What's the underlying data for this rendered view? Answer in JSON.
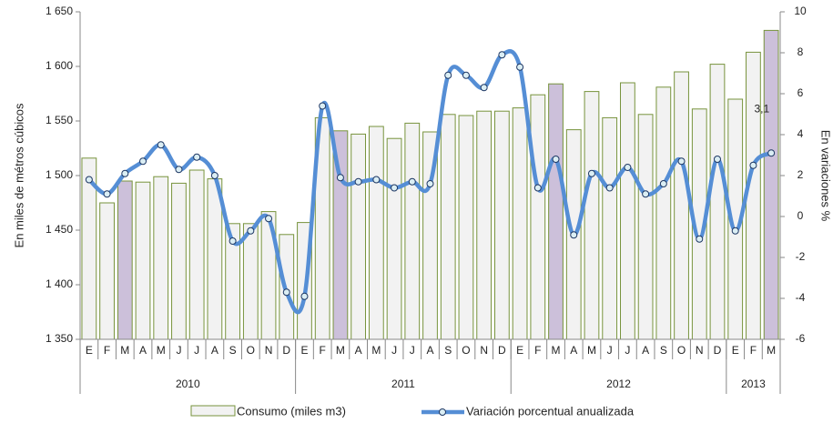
{
  "chart_data": {
    "type": "bar-line",
    "categories": [
      "E",
      "F",
      "M",
      "A",
      "M",
      "J",
      "J",
      "A",
      "S",
      "O",
      "N",
      "D",
      "E",
      "F",
      "M",
      "A",
      "M",
      "J",
      "J",
      "A",
      "S",
      "O",
      "N",
      "D",
      "E",
      "F",
      "M",
      "A",
      "M",
      "J",
      "J",
      "A",
      "S",
      "O",
      "N",
      "D",
      "E",
      "F",
      "M"
    ],
    "groups": [
      "2010",
      "2011",
      "2012",
      "2013"
    ],
    "y_label": "En miles de métros cúbicos",
    "y2_label": "En variaciones %",
    "ylim": [
      1350,
      1650
    ],
    "yticks": [
      {
        "value": 1350,
        "label": "1 350"
      },
      {
        "value": 1400,
        "label": "1 400"
      },
      {
        "value": 1450,
        "label": "1 450"
      },
      {
        "value": 1500,
        "label": "1 500"
      },
      {
        "value": 1550,
        "label": "1 550"
      },
      {
        "value": 1600,
        "label": "1 600"
      },
      {
        "value": 1650,
        "label": "1 650"
      }
    ],
    "y2lim": [
      -6,
      10
    ],
    "y2ticks": [
      -6,
      -4,
      -2,
      0,
      2,
      4,
      6,
      8,
      10
    ],
    "series": [
      {
        "name": "Consumo (miles m3)",
        "type": "bar",
        "color": "#f2f2f2",
        "edge_color": "#77933c",
        "colors": [
          "#f2f2f2",
          "#f2f2f2",
          "#ccc0da",
          "#f2f2f2",
          "#f2f2f2",
          "#f2f2f2",
          "#f2f2f2",
          "#f2f2f2",
          "#f2f2f2",
          "#f2f2f2",
          "#f2f2f2",
          "#f2f2f2",
          "#f2f2f2",
          "#f2f2f2",
          "#ccc0da",
          "#f2f2f2",
          "#f2f2f2",
          "#f2f2f2",
          "#f2f2f2",
          "#f2f2f2",
          "#f2f2f2",
          "#f2f2f2",
          "#f2f2f2",
          "#f2f2f2",
          "#f2f2f2",
          "#f2f2f2",
          "#ccc0da",
          "#f2f2f2",
          "#f2f2f2",
          "#f2f2f2",
          "#f2f2f2",
          "#f2f2f2",
          "#f2f2f2",
          "#f2f2f2",
          "#f2f2f2",
          "#f2f2f2",
          "#f2f2f2",
          "#f2f2f2",
          "#ccc0da"
        ],
        "values": [
          1516,
          1475,
          1495,
          1494,
          1499,
          1493,
          1505,
          1497,
          1456,
          1456,
          1467,
          1446,
          1457,
          1553,
          1541,
          1538,
          1545,
          1534,
          1548,
          1540,
          1556,
          1555,
          1559,
          1559,
          1562,
          1574,
          1584,
          1542,
          1577,
          1553,
          1585,
          1556,
          1581,
          1595,
          1561,
          1602,
          1570,
          1613,
          1633
        ]
      },
      {
        "name": "Variación porcentual anualizada",
        "type": "line",
        "axis": "y2",
        "color": "#558ed5",
        "values": [
          1.8,
          1.1,
          2.1,
          2.7,
          3.5,
          2.3,
          2.9,
          2.0,
          -1.2,
          -0.7,
          -0.1,
          -3.7,
          -3.9,
          5.4,
          1.9,
          1.7,
          1.8,
          1.4,
          1.7,
          1.6,
          6.9,
          6.9,
          6.3,
          7.9,
          7.3,
          1.4,
          2.8,
          -0.9,
          2.1,
          1.4,
          2.4,
          1.1,
          1.6,
          2.7,
          -1.1,
          2.8,
          -0.7,
          2.5,
          3.1
        ],
        "value_labels": [
          null,
          null,
          null,
          null,
          null,
          null,
          null,
          null,
          null,
          null,
          null,
          null,
          null,
          null,
          null,
          null,
          null,
          null,
          null,
          null,
          null,
          null,
          null,
          null,
          null,
          null,
          null,
          null,
          null,
          null,
          null,
          null,
          null,
          null,
          null,
          null,
          null,
          null,
          "3,1"
        ]
      }
    ]
  }
}
